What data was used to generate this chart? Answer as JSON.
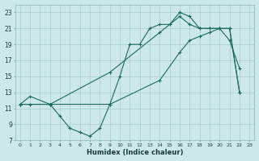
{
  "xlabel": "Humidex (Indice chaleur)",
  "bg_color": "#cce8e8",
  "grid_color": "#aacccc",
  "line_color": "#1a6a5a",
  "xlim": [
    -0.5,
    23.5
  ],
  "ylim": [
    7,
    24
  ],
  "yticks": [
    7,
    9,
    11,
    13,
    15,
    17,
    19,
    21,
    23
  ],
  "xticks": [
    0,
    1,
    2,
    3,
    4,
    5,
    6,
    7,
    8,
    9,
    10,
    11,
    12,
    13,
    14,
    15,
    16,
    17,
    18,
    19,
    20,
    21,
    22,
    23
  ],
  "curve1_x": [
    0,
    1,
    3,
    4,
    5,
    6,
    7,
    8,
    9,
    10,
    11,
    12,
    13,
    14,
    15,
    16,
    17,
    18,
    19,
    20,
    21,
    22
  ],
  "curve1_y": [
    11.5,
    12.5,
    11.5,
    10.0,
    8.5,
    8.0,
    7.5,
    8.5,
    11.5,
    15.0,
    19.0,
    19.0,
    21.0,
    21.5,
    21.5,
    23.0,
    22.5,
    21.0,
    21.0,
    21.0,
    19.5,
    16.0
  ],
  "curve2_x": [
    0,
    1,
    3,
    9,
    14,
    16,
    17,
    18,
    19,
    20,
    21,
    22
  ],
  "curve2_y": [
    11.5,
    11.5,
    11.5,
    15.5,
    20.5,
    22.5,
    21.5,
    21.0,
    21.0,
    21.0,
    21.0,
    13.0
  ],
  "curve3_x": [
    0,
    3,
    9,
    14,
    16,
    17,
    18,
    19,
    20,
    21,
    22
  ],
  "curve3_y": [
    11.5,
    11.5,
    11.5,
    14.5,
    18.0,
    19.5,
    20.0,
    20.5,
    21.0,
    21.0,
    13.0
  ]
}
